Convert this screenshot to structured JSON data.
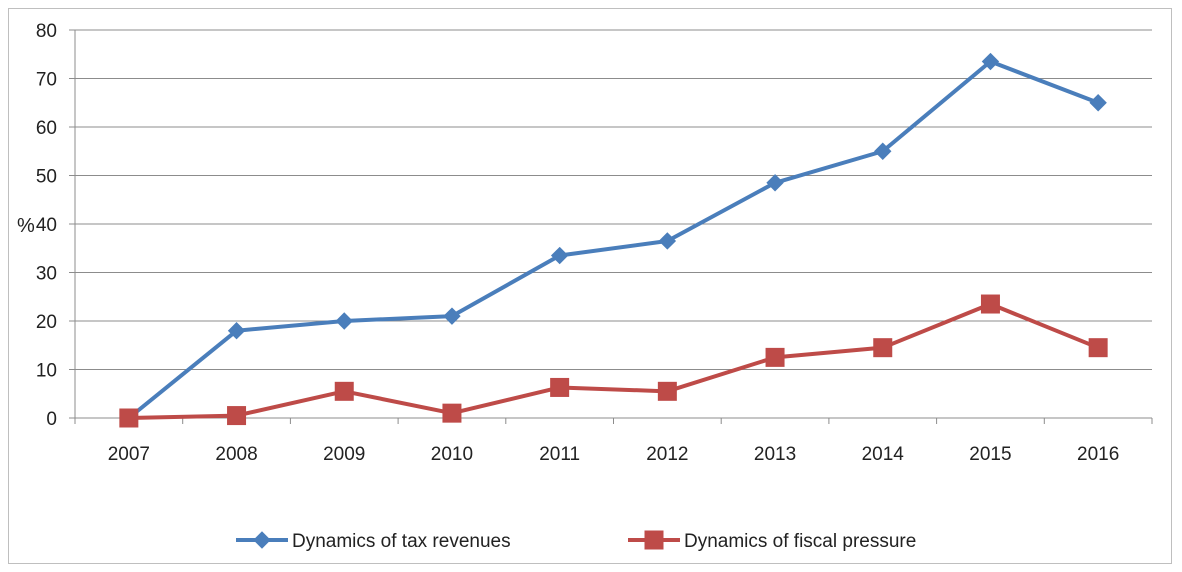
{
  "chart_data": {
    "type": "line",
    "title": "",
    "xlabel": "",
    "ylabel": "%",
    "categories": [
      "2007",
      "2008",
      "2009",
      "2010",
      "2011",
      "2012",
      "2013",
      "2014",
      "2015",
      "2016"
    ],
    "ylim": [
      0,
      80
    ],
    "yticks": [
      "0",
      "10",
      "20",
      "30",
      "40",
      "50",
      "60",
      "70",
      "80"
    ],
    "grid": true,
    "legend_position": "bottom",
    "series": [
      {
        "name": "Dynamics of tax revenues",
        "marker": "diamond",
        "color": "#4a7ebb",
        "values": [
          0,
          18,
          20,
          21,
          33.5,
          36.5,
          48.5,
          55,
          73.5,
          65
        ]
      },
      {
        "name": "Dynamics of fiscal pressure",
        "marker": "square",
        "color": "#be4b48",
        "values": [
          0,
          0.5,
          5.5,
          1,
          6.3,
          5.5,
          12.5,
          14.5,
          23.5,
          14.5
        ]
      }
    ]
  }
}
